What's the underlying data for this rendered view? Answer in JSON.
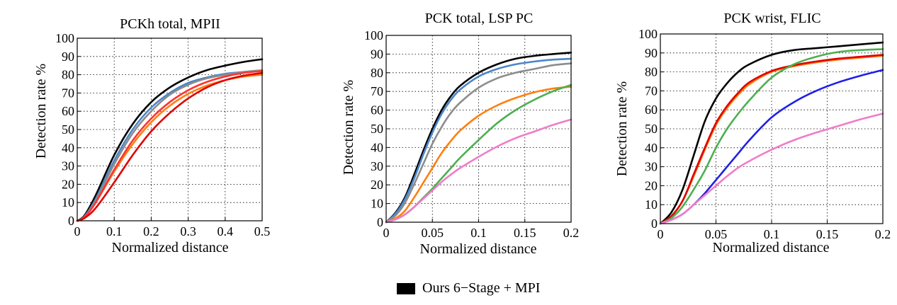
{
  "header": {
    "cut_caption": ""
  },
  "legend": {
    "items": [
      {
        "label": "Ours 6−Stage + MPI",
        "color": "#000000"
      }
    ]
  },
  "chart_data": [
    {
      "type": "line",
      "title": "PCKh total, MPII",
      "xlabel": "Normalized distance",
      "ylabel": "Detection rate %",
      "xlim": [
        0,
        0.5
      ],
      "ylim": [
        0,
        100
      ],
      "xticks": [
        "0",
        "0.1",
        "0.2",
        "0.3",
        "0.4",
        "0.5"
      ],
      "yticks": [
        "0",
        "10",
        "20",
        "30",
        "40",
        "50",
        "60",
        "70",
        "80",
        "90",
        "100"
      ],
      "grid": true,
      "x": [
        0,
        0.02,
        0.05,
        0.1,
        0.15,
        0.2,
        0.25,
        0.3,
        0.35,
        0.4,
        0.45,
        0.5
      ],
      "series": [
        {
          "color": "#000000",
          "values": [
            0,
            3,
            14,
            36,
            53,
            65,
            73,
            78.5,
            82.5,
            85,
            87,
            88.5
          ]
        },
        {
          "color": "#4a86c8",
          "values": [
            0,
            2.5,
            12,
            33,
            50,
            62,
            70,
            75.5,
            78.5,
            80.5,
            81.5,
            82
          ]
        },
        {
          "color": "#8c8c8c",
          "values": [
            0,
            2,
            11,
            31,
            48,
            60,
            69,
            74.5,
            78,
            80,
            81.5,
            82.5
          ]
        },
        {
          "color": "#ff7f0e",
          "values": [
            0,
            2,
            10,
            27,
            42,
            54,
            63,
            69.5,
            74,
            77,
            79,
            80
          ]
        },
        {
          "color": "#ff3333",
          "values": [
            0,
            2,
            10,
            28,
            44,
            56,
            65,
            71.5,
            76,
            79,
            81,
            82
          ]
        },
        {
          "color": "#e00000",
          "values": [
            0,
            1.5,
            7,
            21,
            36,
            49,
            59,
            67,
            73,
            77,
            79.5,
            81
          ]
        }
      ]
    },
    {
      "type": "line",
      "title": "PCK total, LSP PC",
      "xlabel": "Normalized distance",
      "ylabel": "Detection rate %",
      "xlim": [
        0,
        0.2
      ],
      "ylim": [
        0,
        100
      ],
      "xticks": [
        "0",
        "0.05",
        "0.1",
        "0.15",
        "0.2"
      ],
      "yticks": [
        "0",
        "10",
        "20",
        "30",
        "40",
        "50",
        "60",
        "70",
        "80",
        "90",
        "100"
      ],
      "grid": true,
      "x": [
        0,
        0.01,
        0.02,
        0.03,
        0.04,
        0.05,
        0.06,
        0.07,
        0.08,
        0.1,
        0.12,
        0.14,
        0.16,
        0.18,
        0.2
      ],
      "series": [
        {
          "color": "#000000",
          "values": [
            0,
            5,
            13,
            25,
            38,
            50,
            60,
            67.5,
            73,
            80,
            84.5,
            87.5,
            89,
            90,
            90.8
          ]
        },
        {
          "color": "#4a86c8",
          "values": [
            0,
            4.5,
            12,
            23,
            36,
            48,
            58,
            65.5,
            71,
            78,
            82,
            84.5,
            86,
            87,
            87.5
          ]
        },
        {
          "color": "#8c8c8c",
          "values": [
            0,
            3.5,
            10,
            20,
            31,
            42,
            51,
            58.5,
            64,
            72,
            77,
            80,
            82,
            84,
            85
          ]
        },
        {
          "color": "#ff7f0e",
          "values": [
            0,
            2,
            6,
            13,
            21,
            29,
            37,
            43.5,
            49,
            57,
            62.5,
            66.5,
            69.5,
            71.5,
            72.5
          ]
        },
        {
          "color": "#4caf50",
          "values": [
            0,
            1.5,
            4,
            8,
            13,
            18,
            23.5,
            29,
            34.5,
            44,
            53,
            60,
            65.5,
            70,
            73.5
          ]
        },
        {
          "color": "#f07cc8",
          "values": [
            0,
            1.5,
            4,
            8,
            12.5,
            17,
            21.5,
            25.5,
            29,
            35,
            40.5,
            45,
            48.5,
            52,
            55
          ]
        }
      ]
    },
    {
      "type": "line",
      "title": "PCK wrist, FLIC",
      "xlabel": "Normalized distance",
      "ylabel": "Detection rate %",
      "xlim": [
        0,
        0.2
      ],
      "ylim": [
        0,
        100
      ],
      "xticks": [
        "0",
        "0.05",
        "0.1",
        "0.15",
        "0.2"
      ],
      "yticks": [
        "0",
        "10",
        "20",
        "30",
        "40",
        "50",
        "60",
        "70",
        "80",
        "90",
        "100"
      ],
      "grid": true,
      "x": [
        0,
        0.01,
        0.02,
        0.03,
        0.04,
        0.05,
        0.06,
        0.07,
        0.08,
        0.1,
        0.12,
        0.14,
        0.16,
        0.18,
        0.2
      ],
      "series": [
        {
          "color": "#000000",
          "values": [
            0,
            6,
            18,
            36,
            54,
            66,
            74,
            80,
            84,
            89,
            91.5,
            92.5,
            93.5,
            94.5,
            95.5
          ]
        },
        {
          "color": "#ff7f0e",
          "values": [
            0,
            4,
            12,
            25,
            39,
            52,
            61,
            68,
            73.5,
            80,
            83,
            85,
            86.5,
            87.5,
            88.5
          ]
        },
        {
          "color": "#e00000",
          "values": [
            0,
            4,
            12,
            26,
            40,
            53,
            62,
            69,
            74.5,
            80.5,
            83.5,
            85.5,
            87,
            88,
            89
          ]
        },
        {
          "color": "#4caf50",
          "values": [
            0,
            3,
            9,
            18,
            28,
            40,
            50,
            58,
            65,
            77,
            84,
            88,
            90.5,
            91.5,
            92
          ]
        },
        {
          "color": "#1f1fe8",
          "values": [
            0,
            2,
            5,
            10,
            16,
            23,
            30,
            37,
            44,
            56,
            64,
            70,
            74.5,
            78,
            81
          ]
        },
        {
          "color": "#f07cc8",
          "values": [
            0,
            2,
            5,
            10,
            15,
            20,
            25,
            29.5,
            33,
            39,
            44,
            48,
            51.5,
            55,
            58
          ]
        }
      ]
    }
  ]
}
